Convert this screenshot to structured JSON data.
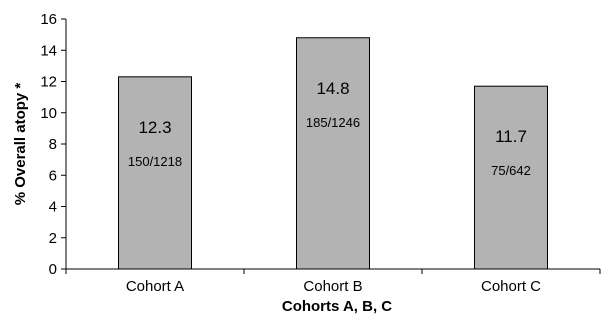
{
  "chart_data": {
    "type": "bar",
    "categories": [
      "Cohort A",
      "Cohort B",
      "Cohort C"
    ],
    "values": [
      12.3,
      14.8,
      11.7
    ],
    "value_labels": [
      "12.3",
      "14.8",
      "11.7"
    ],
    "count_labels": [
      "150/1218",
      "185/1246",
      "75/642"
    ],
    "xlabel": "Cohorts A, B, C",
    "ylabel": "% Overall atopy *",
    "ylim": [
      0,
      16
    ],
    "yticks": [
      0,
      2,
      4,
      6,
      8,
      10,
      12,
      14,
      16
    ],
    "grid": false,
    "legend": "none",
    "colors": {
      "bar": "#b3b3b3",
      "edge": "#000000"
    }
  }
}
